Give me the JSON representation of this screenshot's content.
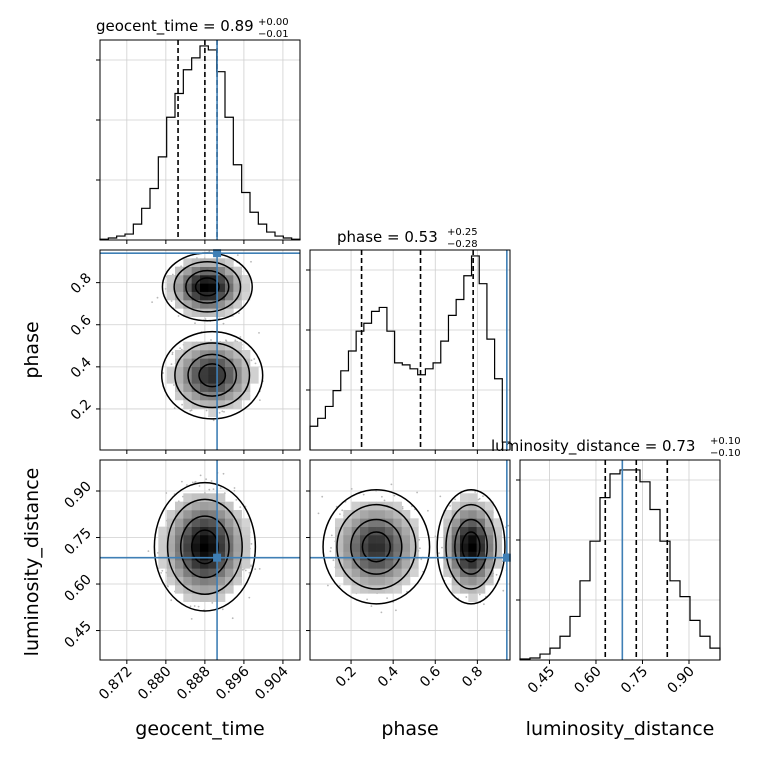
{
  "truth_color": "#3f7fb5",
  "chart_data": {
    "type": "corner",
    "parameters": [
      "geocent_time",
      "phase",
      "luminosity_distance"
    ],
    "truths": {
      "geocent_time": 0.8905,
      "phase": 0.94,
      "luminosity_distance": 0.685
    },
    "titles": {
      "geocent_time": {
        "text": "geocent_time = 0.89",
        "sup": "+0.00",
        "sub": "−0.01"
      },
      "phase": {
        "text": "phase = 0.53",
        "sup": "+0.25",
        "sub": "−0.28"
      },
      "luminosity_distance": {
        "text": "luminosity_distance = 0.73",
        "sup": "+0.10",
        "sub": "−0.10"
      }
    },
    "axes": {
      "geocent_time": {
        "range": [
          0.8665,
          0.9075
        ],
        "ticks": [
          "0.872",
          "0.880",
          "0.888",
          "0.896",
          "0.904"
        ],
        "tick_values": [
          0.872,
          0.88,
          0.888,
          0.896,
          0.904
        ]
      },
      "phase": {
        "range": [
          0.005,
          0.955
        ],
        "ticks": [
          "0.2",
          "0.4",
          "0.6",
          "0.8"
        ],
        "tick_values": [
          0.2,
          0.4,
          0.6,
          0.8
        ]
      },
      "luminosity_distance": {
        "range": [
          0.355,
          1.0
        ],
        "ticks": [
          "0.45",
          "0.60",
          "0.75",
          "0.90"
        ],
        "tick_values": [
          0.45,
          0.6,
          0.75,
          0.9
        ]
      }
    },
    "quantiles": {
      "geocent_time": [
        0.8825,
        0.888,
        0.8905
      ],
      "phase": [
        0.25,
        0.53,
        0.78
      ],
      "luminosity_distance": [
        0.63,
        0.73,
        0.83
      ]
    },
    "histograms": {
      "geocent_time": [
        0.004,
        0.01,
        0.02,
        0.03,
        0.08,
        0.16,
        0.26,
        0.42,
        0.62,
        0.74,
        0.86,
        0.92,
        0.98,
        0.96,
        0.85,
        0.62,
        0.38,
        0.24,
        0.14,
        0.08,
        0.04,
        0.02,
        0.01,
        0.004
      ],
      "phase": [
        0.12,
        0.16,
        0.22,
        0.3,
        0.4,
        0.5,
        0.6,
        0.64,
        0.7,
        0.72,
        0.6,
        0.44,
        0.43,
        0.41,
        0.38,
        0.41,
        0.44,
        0.55,
        0.68,
        0.76,
        0.88,
        0.98,
        0.84,
        0.56,
        0.36,
        0.04
      ],
      "luminosity_distance": [
        0.005,
        0.01,
        0.03,
        0.06,
        0.12,
        0.22,
        0.4,
        0.6,
        0.82,
        0.94,
        0.96,
        0.96,
        0.9,
        0.76,
        0.6,
        0.4,
        0.32,
        0.2,
        0.12,
        0.06
      ]
    }
  }
}
